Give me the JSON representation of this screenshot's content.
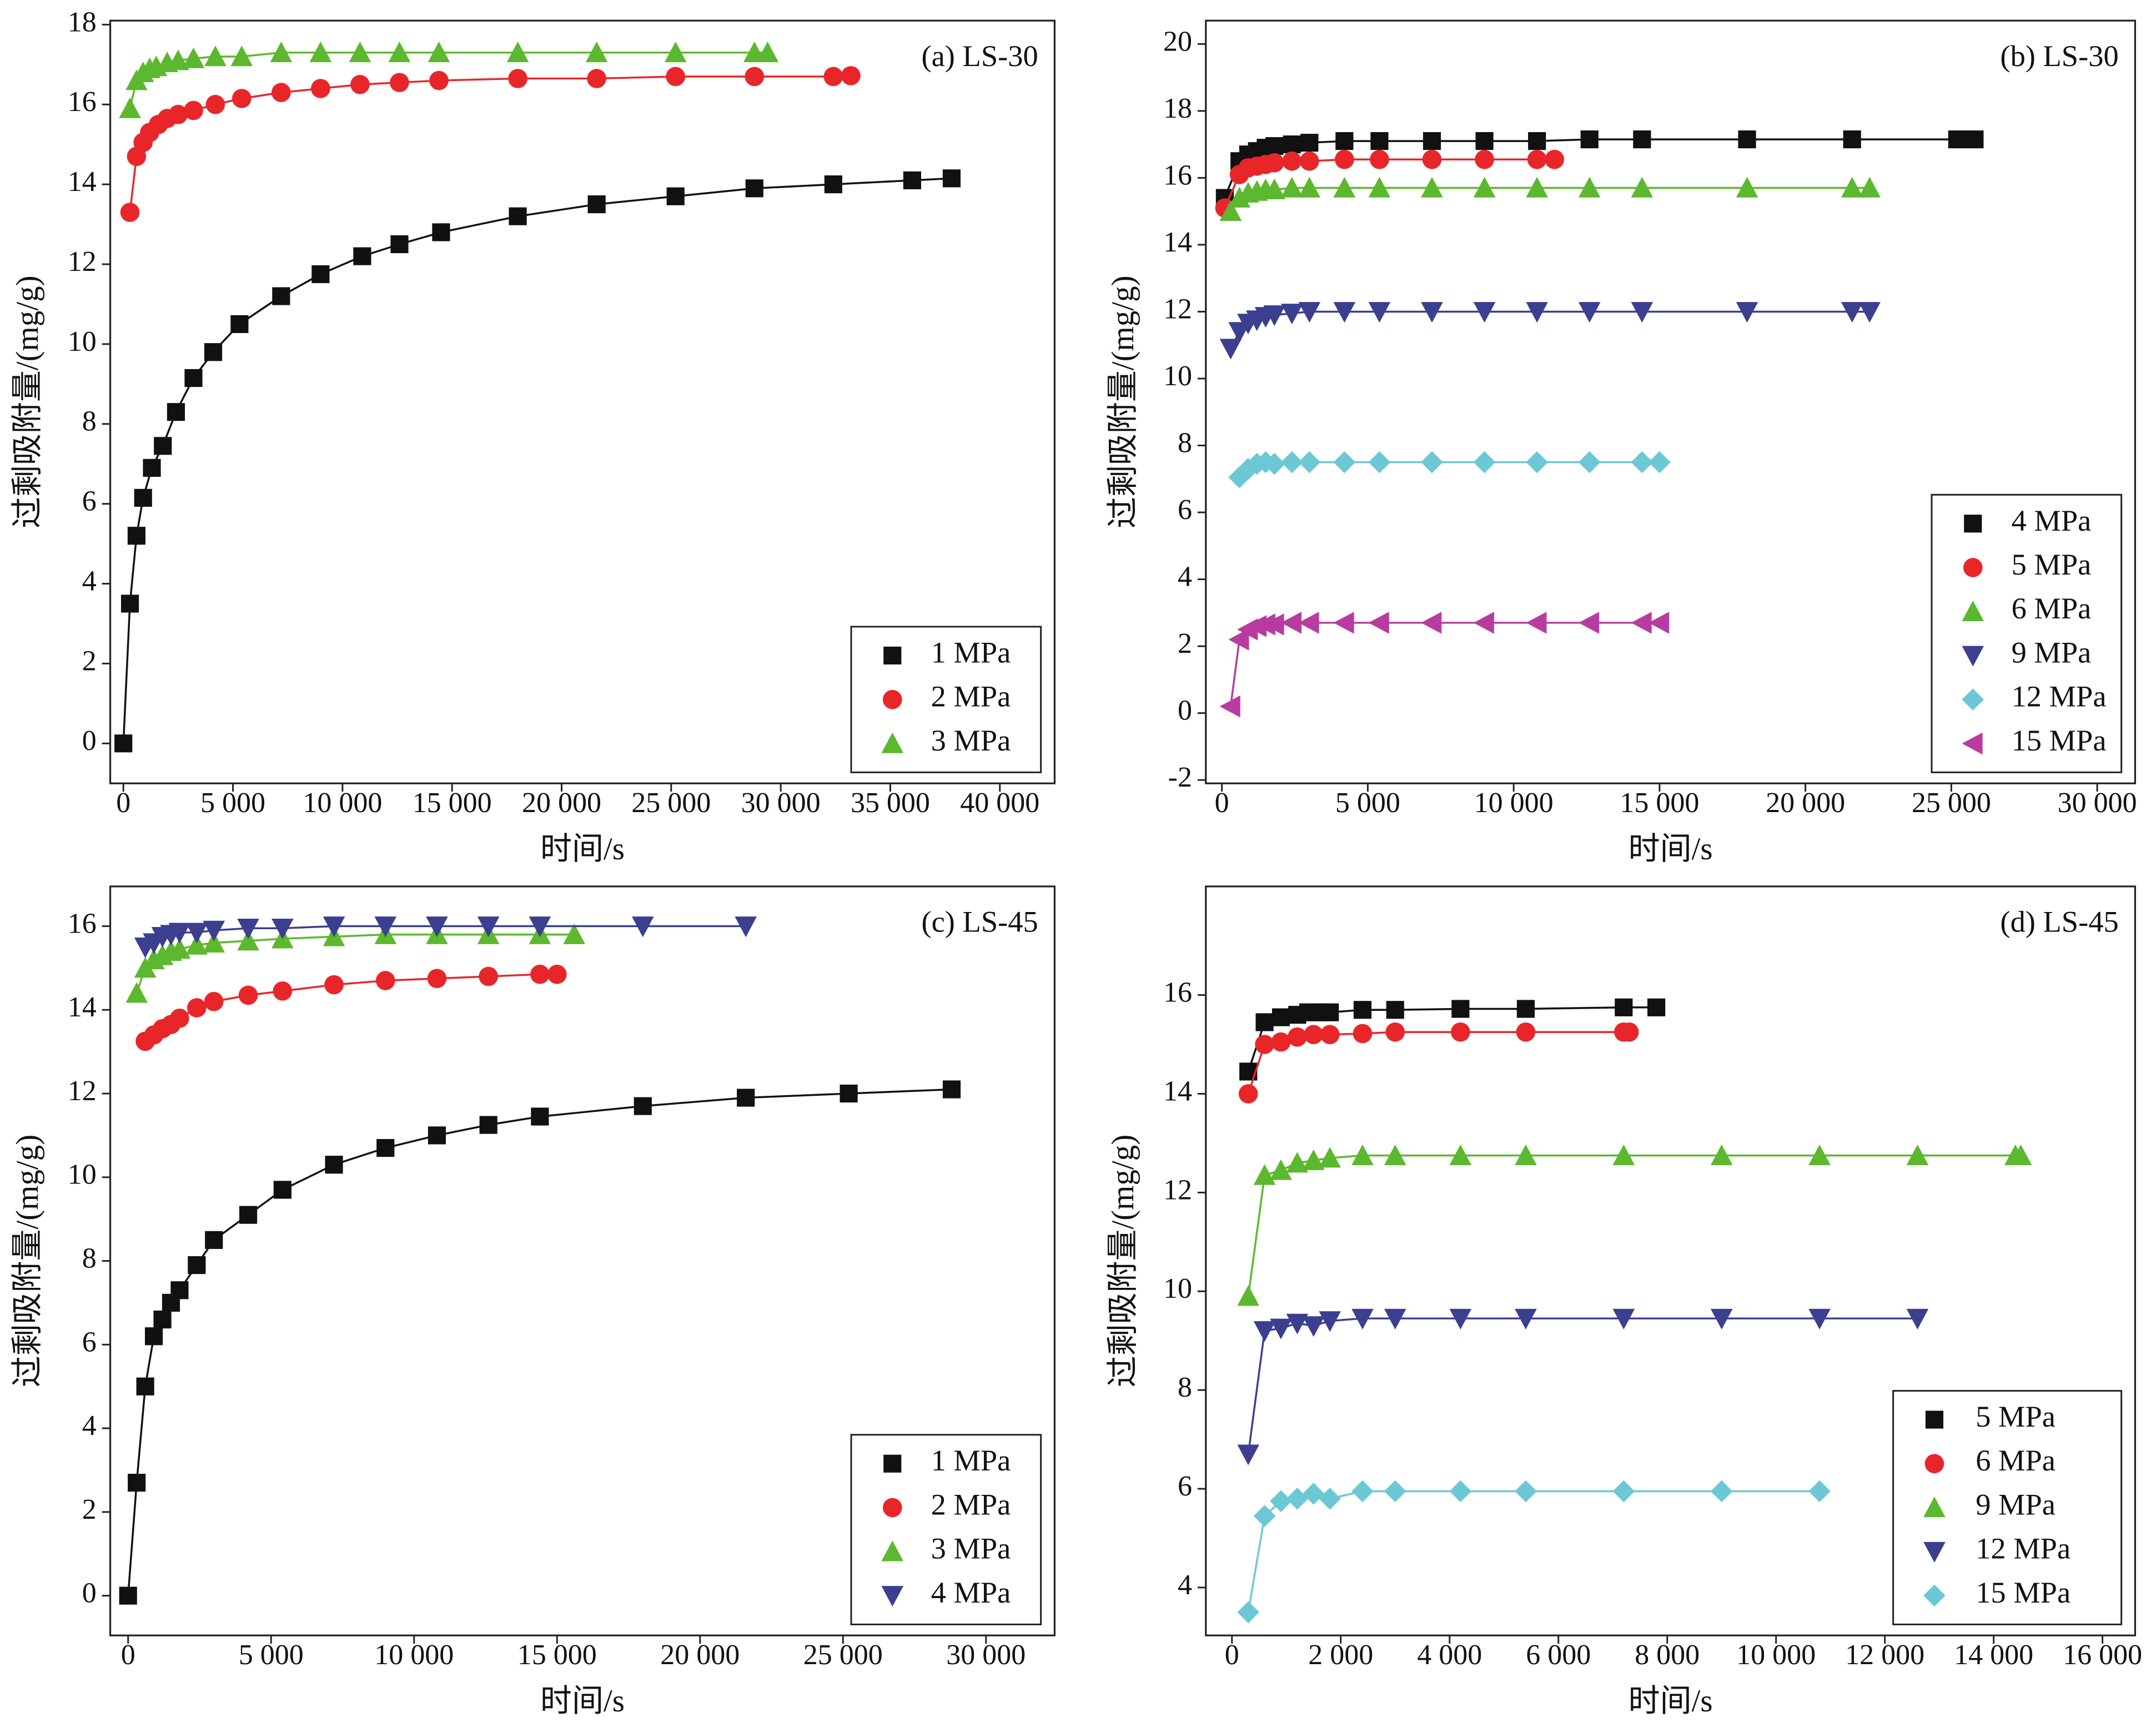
{
  "chart_data": [
    {
      "type": "scatter",
      "annotation": "(a) LS-30",
      "xlabel": "时间/s",
      "ylabel": "过剩吸附量/(mg/g)",
      "legend": "lower right",
      "xlim": [
        -600,
        42500
      ],
      "ylim": [
        -1,
        18.1
      ],
      "xticks": [
        0,
        {
          "value": 5000,
          "label": "5 000"
        },
        {
          "value": 10000,
          "label": "10 000"
        },
        {
          "value": 15000,
          "label": "15 000"
        },
        {
          "value": 20000,
          "label": "20 000"
        },
        {
          "value": 25000,
          "label": "25 000"
        },
        {
          "value": 30000,
          "label": "30 000"
        },
        {
          "value": 35000,
          "label": "35 000"
        },
        {
          "value": 40000,
          "label": "40 000"
        }
      ],
      "yticks": [
        0,
        2,
        4,
        6,
        8,
        10,
        12,
        14,
        16,
        18
      ],
      "series": [
        {
          "name": "1 MPa",
          "color": "#111111",
          "marker": "square",
          "x": [
            0,
            300,
            600,
            900,
            1300,
            1800,
            2400,
            3200,
            4100,
            5300,
            7200,
            9000,
            10900,
            12600,
            14500,
            18000,
            21600,
            25200,
            28800,
            32400,
            36000,
            37800
          ],
          "values": [
            0,
            3.5,
            5.2,
            6.15,
            6.9,
            7.45,
            8.3,
            9.15,
            9.8,
            10.5,
            11.2,
            11.75,
            12.2,
            12.5,
            12.8,
            13.2,
            13.5,
            13.7,
            13.9,
            14.0,
            14.1,
            14.15
          ]
        },
        {
          "name": "2 MPa",
          "color": "#e8262a",
          "marker": "circle",
          "x": [
            300,
            600,
            900,
            1200,
            1600,
            2000,
            2500,
            3200,
            4200,
            5400,
            7200,
            9000,
            10800,
            12600,
            14400,
            18000,
            21600,
            25200,
            28800,
            32400,
            33200
          ],
          "values": [
            13.3,
            14.7,
            15.05,
            15.3,
            15.5,
            15.65,
            15.75,
            15.85,
            16.0,
            16.15,
            16.3,
            16.4,
            16.5,
            16.55,
            16.6,
            16.65,
            16.65,
            16.7,
            16.7,
            16.7,
            16.72
          ]
        },
        {
          "name": "3 MPa",
          "color": "#5cb82e",
          "marker": "triangle-up",
          "x": [
            300,
            600,
            900,
            1200,
            1500,
            2000,
            2500,
            3200,
            4200,
            5400,
            7200,
            9000,
            10800,
            12600,
            14400,
            18000,
            21600,
            25200,
            28800,
            29400
          ],
          "values": [
            15.9,
            16.6,
            16.8,
            16.9,
            16.95,
            17.05,
            17.1,
            17.15,
            17.2,
            17.2,
            17.3,
            17.3,
            17.3,
            17.3,
            17.3,
            17.3,
            17.3,
            17.3,
            17.3,
            17.3
          ]
        }
      ]
    },
    {
      "type": "scatter",
      "annotation": "(b) LS-30",
      "xlabel": "时间/s",
      "ylabel": "过剩吸附量/(mg/g)",
      "legend": "lower right",
      "xlim": [
        -550,
        31300
      ],
      "ylim": [
        -2.1,
        20.7
      ],
      "xticks": [
        0,
        {
          "value": 5000,
          "label": "5 000"
        },
        {
          "value": 10000,
          "label": "10 000"
        },
        {
          "value": 15000,
          "label": "15 000"
        },
        {
          "value": 20000,
          "label": "20 000"
        },
        {
          "value": 25000,
          "label": "25 000"
        },
        {
          "value": 30000,
          "label": "30 000"
        }
      ],
      "yticks": [
        -2,
        0,
        2,
        4,
        6,
        8,
        10,
        12,
        14,
        16,
        18,
        20
      ],
      "series": [
        {
          "name": "4 MPa",
          "color": "#111111",
          "marker": "square",
          "x": [
            100,
            600,
            900,
            1200,
            1500,
            1800,
            2400,
            3000,
            4200,
            5400,
            7200,
            9000,
            10800,
            12600,
            14400,
            18000,
            21600,
            25200,
            25800
          ],
          "values": [
            15.4,
            16.5,
            16.7,
            16.8,
            16.9,
            16.95,
            17.0,
            17.05,
            17.1,
            17.1,
            17.1,
            17.1,
            17.1,
            17.15,
            17.15,
            17.15,
            17.15,
            17.15,
            17.15
          ]
        },
        {
          "name": "5 MPa",
          "color": "#e8262a",
          "marker": "circle",
          "x": [
            100,
            600,
            900,
            1200,
            1500,
            1800,
            2400,
            3000,
            4200,
            5400,
            7200,
            9000,
            10800,
            11400
          ],
          "values": [
            15.1,
            16.1,
            16.3,
            16.35,
            16.4,
            16.45,
            16.5,
            16.5,
            16.55,
            16.55,
            16.55,
            16.55,
            16.55,
            16.55
          ]
        },
        {
          "name": "6 MPa",
          "color": "#5cb82e",
          "marker": "triangle-up",
          "x": [
            300,
            600,
            900,
            1200,
            1500,
            1800,
            2400,
            3000,
            4200,
            5400,
            7200,
            9000,
            10800,
            12600,
            14400,
            18000,
            21600,
            22200
          ],
          "values": [
            15.0,
            15.4,
            15.55,
            15.6,
            15.65,
            15.65,
            15.7,
            15.7,
            15.7,
            15.7,
            15.7,
            15.7,
            15.7,
            15.7,
            15.7,
            15.7,
            15.7,
            15.7
          ]
        },
        {
          "name": "9 MPa",
          "color": "#3b3f8f",
          "marker": "triangle-down",
          "x": [
            300,
            600,
            900,
            1200,
            1500,
            1800,
            2400,
            3000,
            4200,
            5400,
            7200,
            9000,
            10800,
            12600,
            14400,
            18000,
            21600,
            22200
          ],
          "values": [
            10.9,
            11.4,
            11.65,
            11.75,
            11.85,
            11.9,
            11.95,
            12.0,
            12.0,
            12.0,
            12.0,
            12.0,
            12.0,
            12.0,
            12.0,
            12.0,
            12.0,
            12.0
          ]
        },
        {
          "name": "12 MPa",
          "color": "#6cc8d4",
          "marker": "diamond",
          "x": [
            600,
            900,
            1200,
            1500,
            1800,
            2400,
            3000,
            4200,
            5400,
            7200,
            9000,
            10800,
            12600,
            14400,
            15000
          ],
          "values": [
            7.05,
            7.3,
            7.45,
            7.5,
            7.45,
            7.5,
            7.5,
            7.5,
            7.5,
            7.5,
            7.5,
            7.5,
            7.5,
            7.5,
            7.5
          ]
        },
        {
          "name": "15 MPa",
          "color": "#b83ca0",
          "marker": "triangle-left",
          "x": [
            300,
            600,
            900,
            1200,
            1500,
            1800,
            2400,
            3000,
            4200,
            5400,
            7200,
            9000,
            10800,
            12600,
            14400,
            15000
          ],
          "values": [
            0.2,
            2.2,
            2.5,
            2.6,
            2.65,
            2.65,
            2.7,
            2.7,
            2.7,
            2.7,
            2.7,
            2.7,
            2.7,
            2.7,
            2.7,
            2.7
          ]
        }
      ]
    },
    {
      "type": "scatter",
      "annotation": "(c) LS-45",
      "xlabel": "时间/s",
      "ylabel": "过剩吸附量/(mg/g)",
      "legend": "lower right",
      "xlim": [
        -625,
        32400
      ],
      "ylim": [
        -0.95,
        16.95
      ],
      "xticks": [
        0,
        {
          "value": 5000,
          "label": "5 000"
        },
        {
          "value": 10000,
          "label": "10 000"
        },
        {
          "value": 15000,
          "label": "15 000"
        },
        {
          "value": 20000,
          "label": "20 000"
        },
        {
          "value": 25000,
          "label": "25 000"
        },
        {
          "value": 30000,
          "label": "30 000"
        }
      ],
      "yticks": [
        0,
        2,
        4,
        6,
        8,
        10,
        12,
        14,
        16
      ],
      "series": [
        {
          "name": "1 MPa",
          "color": "#111111",
          "marker": "square",
          "x": [
            0,
            300,
            600,
            900,
            1200,
            1500,
            1800,
            2400,
            3000,
            4200,
            5400,
            7200,
            9000,
            10800,
            12600,
            14400,
            18000,
            21600,
            25200,
            28800
          ],
          "values": [
            0,
            2.7,
            5.0,
            6.2,
            6.6,
            7.0,
            7.3,
            7.9,
            8.5,
            9.1,
            9.7,
            10.3,
            10.7,
            11.0,
            11.25,
            11.45,
            11.7,
            11.9,
            12.0,
            12.1
          ]
        },
        {
          "name": "2 MPa",
          "color": "#e8262a",
          "marker": "circle",
          "x": [
            600,
            900,
            1200,
            1500,
            1800,
            2400,
            3000,
            4200,
            5400,
            7200,
            9000,
            10800,
            12600,
            14400,
            15000
          ],
          "values": [
            13.25,
            13.4,
            13.55,
            13.65,
            13.8,
            14.05,
            14.2,
            14.35,
            14.45,
            14.6,
            14.7,
            14.75,
            14.8,
            14.85,
            14.85
          ]
        },
        {
          "name": "3 MPa",
          "color": "#5cb82e",
          "marker": "triangle-up",
          "x": [
            300,
            600,
            900,
            1200,
            1500,
            1800,
            2400,
            3000,
            4200,
            5400,
            7200,
            9000,
            10800,
            12600,
            14400,
            15600
          ],
          "values": [
            14.4,
            15.0,
            15.2,
            15.3,
            15.4,
            15.45,
            15.55,
            15.6,
            15.65,
            15.7,
            15.75,
            15.8,
            15.8,
            15.8,
            15.8,
            15.8
          ]
        },
        {
          "name": "4 MPa",
          "color": "#3b3f8f",
          "marker": "triangle-down",
          "x": [
            600,
            900,
            1200,
            1500,
            1800,
            2400,
            3000,
            4200,
            5400,
            7200,
            9000,
            10800,
            12600,
            14400,
            18000,
            21600
          ],
          "values": [
            15.5,
            15.6,
            15.75,
            15.8,
            15.85,
            15.85,
            15.9,
            15.95,
            15.95,
            16.0,
            16.0,
            16.0,
            16.0,
            16.0,
            16.0,
            16.0
          ]
        }
      ]
    },
    {
      "type": "scatter",
      "annotation": "(d) LS-45",
      "xlabel": "时间/s",
      "ylabel": "过剩吸附量/(mg/g)",
      "legend": "lower right",
      "xlim": [
        -480,
        16600
      ],
      "ylim": [
        3.03,
        18.2
      ],
      "xticks": [
        0,
        {
          "value": 2000,
          "label": "2 000"
        },
        {
          "value": 4000,
          "label": "4 000"
        },
        {
          "value": 6000,
          "label": "6 000"
        },
        {
          "value": 8000,
          "label": "8 000"
        },
        {
          "value": 10000,
          "label": "10 000"
        },
        {
          "value": 12000,
          "label": "12 000"
        },
        {
          "value": 14000,
          "label": "14 000"
        },
        {
          "value": 16000,
          "label": "16 000"
        }
      ],
      "yticks": [
        4,
        6,
        8,
        10,
        12,
        14,
        16
      ],
      "series": [
        {
          "name": "5 MPa",
          "color": "#111111",
          "marker": "square",
          "x": [
            300,
            600,
            900,
            1200,
            1400,
            1600,
            1800,
            2400,
            3000,
            4200,
            5400,
            7200,
            7800
          ],
          "values": [
            14.45,
            15.45,
            15.55,
            15.6,
            15.65,
            15.65,
            15.65,
            15.7,
            15.7,
            15.72,
            15.72,
            15.75,
            15.75
          ]
        },
        {
          "name": "6 MPa",
          "color": "#e8262a",
          "marker": "circle",
          "x": [
            300,
            600,
            900,
            1200,
            1500,
            1800,
            2400,
            3000,
            4200,
            5400,
            7200,
            7300
          ],
          "values": [
            14.0,
            15.0,
            15.05,
            15.15,
            15.2,
            15.2,
            15.22,
            15.25,
            15.25,
            15.25,
            15.25,
            15.25
          ]
        },
        {
          "name": "9 MPa",
          "color": "#5cb82e",
          "marker": "triangle-up",
          "x": [
            300,
            600,
            900,
            1200,
            1500,
            1800,
            2400,
            3000,
            4200,
            5400,
            7200,
            9000,
            10800,
            12600,
            14400,
            14500
          ],
          "values": [
            9.9,
            12.35,
            12.45,
            12.6,
            12.65,
            12.7,
            12.75,
            12.75,
            12.75,
            12.75,
            12.75,
            12.75,
            12.75,
            12.75,
            12.75,
            12.75
          ]
        },
        {
          "name": "12 MPa",
          "color": "#3b3f8f",
          "marker": "triangle-down",
          "x": [
            300,
            600,
            900,
            1200,
            1500,
            1800,
            2400,
            3000,
            4200,
            5400,
            7200,
            9000,
            10800,
            12600
          ],
          "values": [
            6.7,
            9.2,
            9.25,
            9.35,
            9.3,
            9.4,
            9.45,
            9.45,
            9.45,
            9.45,
            9.45,
            9.45,
            9.45,
            9.45
          ]
        },
        {
          "name": "15 MPa",
          "color": "#6cc8d4",
          "marker": "diamond",
          "x": [
            300,
            600,
            900,
            1200,
            1500,
            1800,
            2400,
            3000,
            4200,
            5400,
            7200,
            9000,
            10800
          ],
          "values": [
            3.5,
            5.45,
            5.75,
            5.8,
            5.9,
            5.8,
            5.95,
            5.95,
            5.95,
            5.95,
            5.95,
            5.95,
            5.95
          ]
        }
      ]
    }
  ]
}
